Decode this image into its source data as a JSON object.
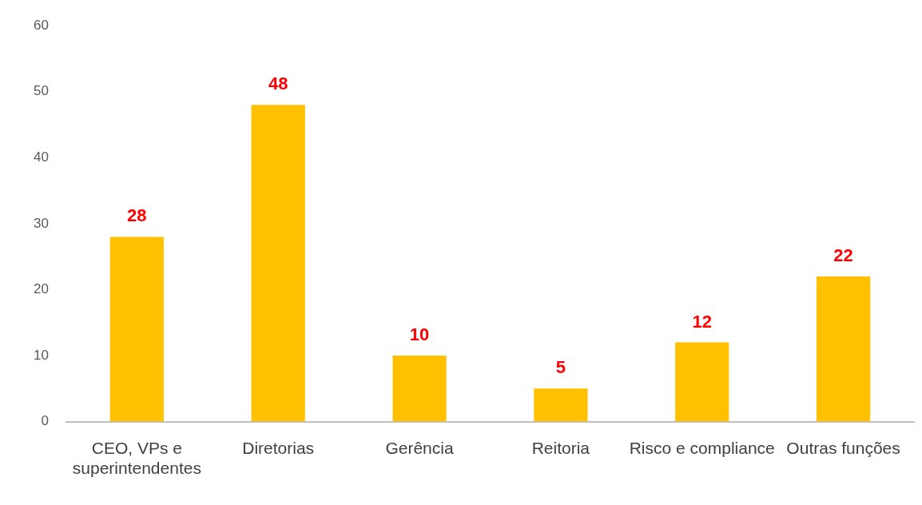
{
  "chart_data": {
    "type": "bar",
    "categories": [
      "CEO, VPs e superintendentes",
      "Diretorias",
      "Gerência",
      "Reitoria",
      "Risco e compliance",
      "Outras funções"
    ],
    "values": [
      28,
      48,
      10,
      5,
      12,
      22
    ],
    "color": "#ffc000",
    "ylim": [
      0,
      60
    ],
    "yticks": [
      0,
      10,
      20,
      30,
      40,
      50,
      60
    ],
    "grid": false,
    "legend": false,
    "data_labels": true
  }
}
